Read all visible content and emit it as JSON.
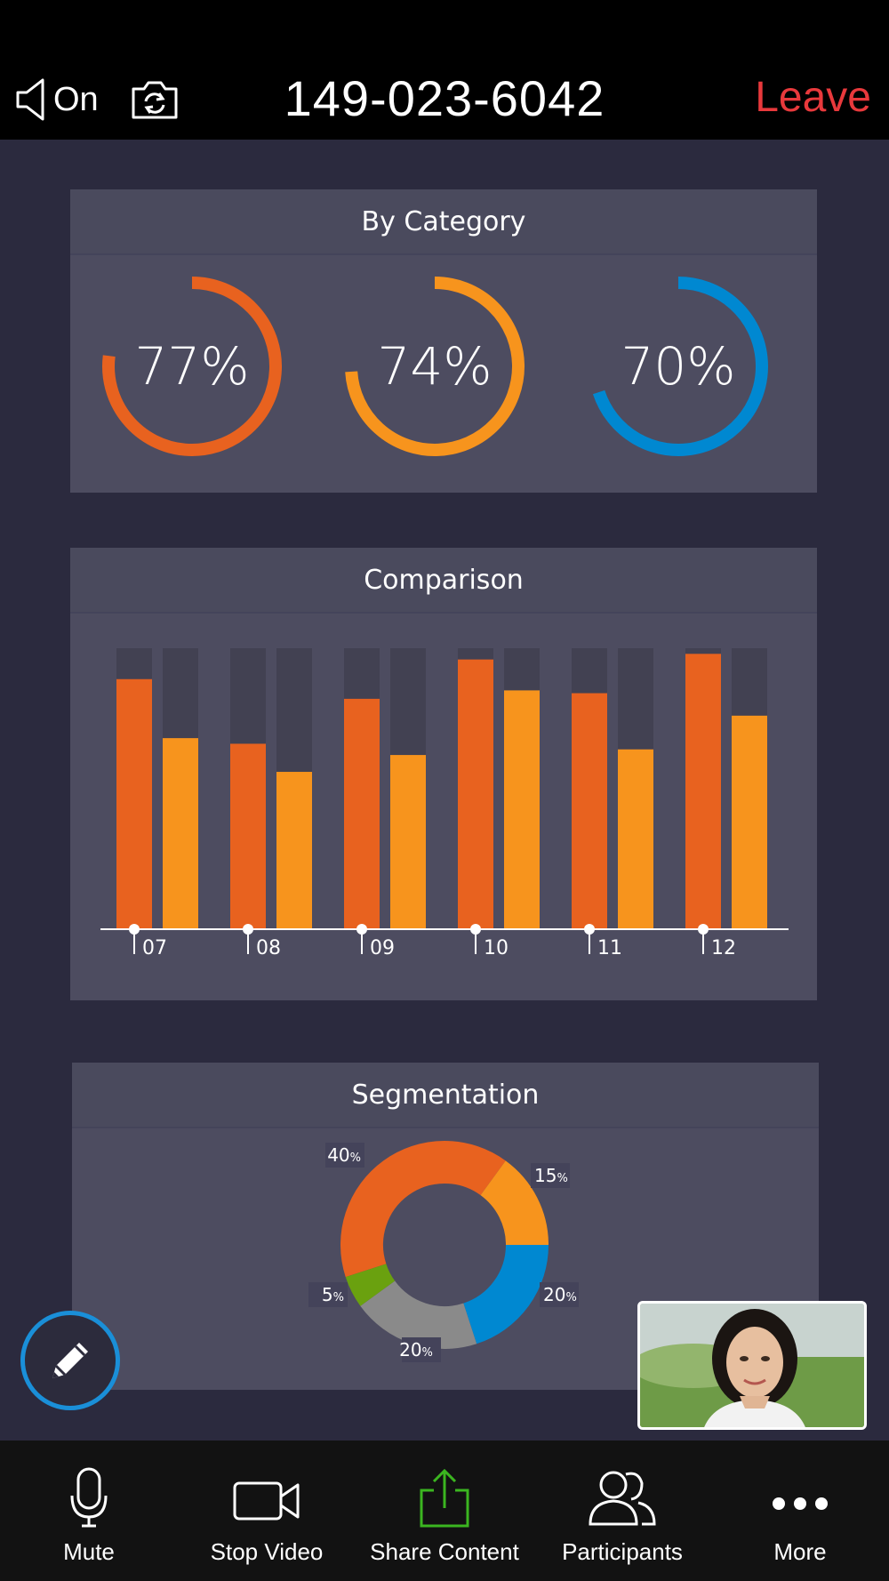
{
  "header": {
    "audio_label": "On",
    "meeting_id": "149-023-6042",
    "leave_label": "Leave"
  },
  "panels": {
    "category": {
      "title": "By Category"
    },
    "comparison": {
      "title": "Comparison"
    },
    "segmentation": {
      "title": "Segmentation"
    }
  },
  "colors": {
    "orange_dark": "#e8621f",
    "orange_light": "#f7941d",
    "blue": "#0088d1",
    "green": "#6aa10f",
    "gray": "#8a8a8a",
    "leave_red": "#e8393c",
    "share_green": "#3bb520"
  },
  "chart_data": [
    {
      "type": "donut-gauges",
      "title": "By Category",
      "values": [
        {
          "label": "77%",
          "value": 77,
          "color": "#e8621f"
        },
        {
          "label": "74%",
          "value": 74,
          "color": "#f7941d"
        },
        {
          "label": "70%",
          "value": 70,
          "color": "#0088d1"
        }
      ]
    },
    {
      "type": "bar",
      "title": "Comparison",
      "categories": [
        "07",
        "08",
        "09",
        "10",
        "11",
        "12"
      ],
      "series": [
        {
          "values": [
            89,
            66,
            82,
            96,
            84,
            98
          ],
          "color": "#e8621f"
        },
        {
          "values": [
            68,
            56,
            62,
            85,
            64,
            76
          ],
          "color": "#f7941d"
        }
      ],
      "ylim": [
        0,
        100
      ]
    },
    {
      "type": "pie",
      "title": "Segmentation",
      "slices": [
        {
          "label": "40",
          "unit": "%",
          "value": 40,
          "color": "#e8621f"
        },
        {
          "label": "15",
          "unit": "%",
          "value": 15,
          "color": "#f7941d"
        },
        {
          "label": "20",
          "unit": "%",
          "value": 20,
          "color": "#0088d1"
        },
        {
          "label": "20",
          "unit": "%",
          "value": 20,
          "color": "#8a8a8a"
        },
        {
          "label": "5",
          "unit": "%",
          "value": 5,
          "color": "#6aa10f"
        }
      ]
    }
  ],
  "toolbar": {
    "items": [
      {
        "label": "Mute",
        "icon": "microphone-icon"
      },
      {
        "label": "Stop Video",
        "icon": "video-camera-icon"
      },
      {
        "label": "Share Content",
        "icon": "share-icon"
      },
      {
        "label": "Participants",
        "icon": "participants-icon"
      },
      {
        "label": "More",
        "icon": "more-icon"
      }
    ]
  },
  "annotate": {
    "icon": "pencil-icon"
  },
  "self_video": {
    "icon": "participant-thumbnail"
  }
}
